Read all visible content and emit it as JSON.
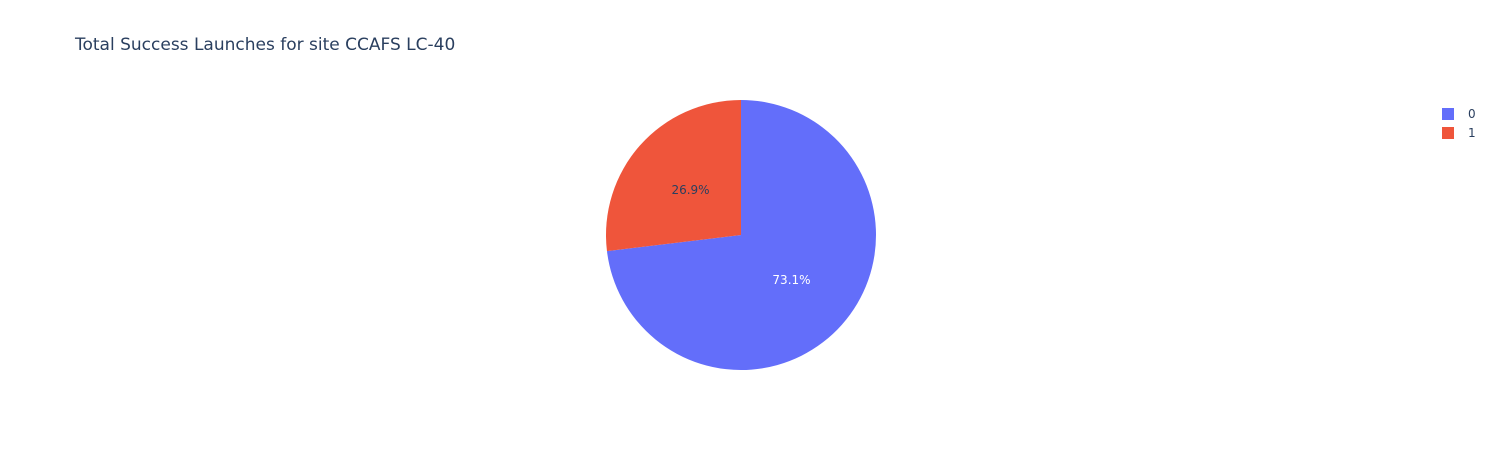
{
  "chart_data": {
    "type": "pie",
    "title": "Total Success Launches for site CCAFS LC-40",
    "labels": [
      "0",
      "1"
    ],
    "values": [
      73.1,
      26.9
    ],
    "percent_labels": [
      "73.1%",
      "26.9%"
    ],
    "colors": [
      "#636efa",
      "#EF553B"
    ],
    "label_text_colors": [
      "#ffffff",
      "#2a3f5f"
    ],
    "legend_placement": "top-right",
    "direction": "clockwise",
    "start": "top"
  }
}
